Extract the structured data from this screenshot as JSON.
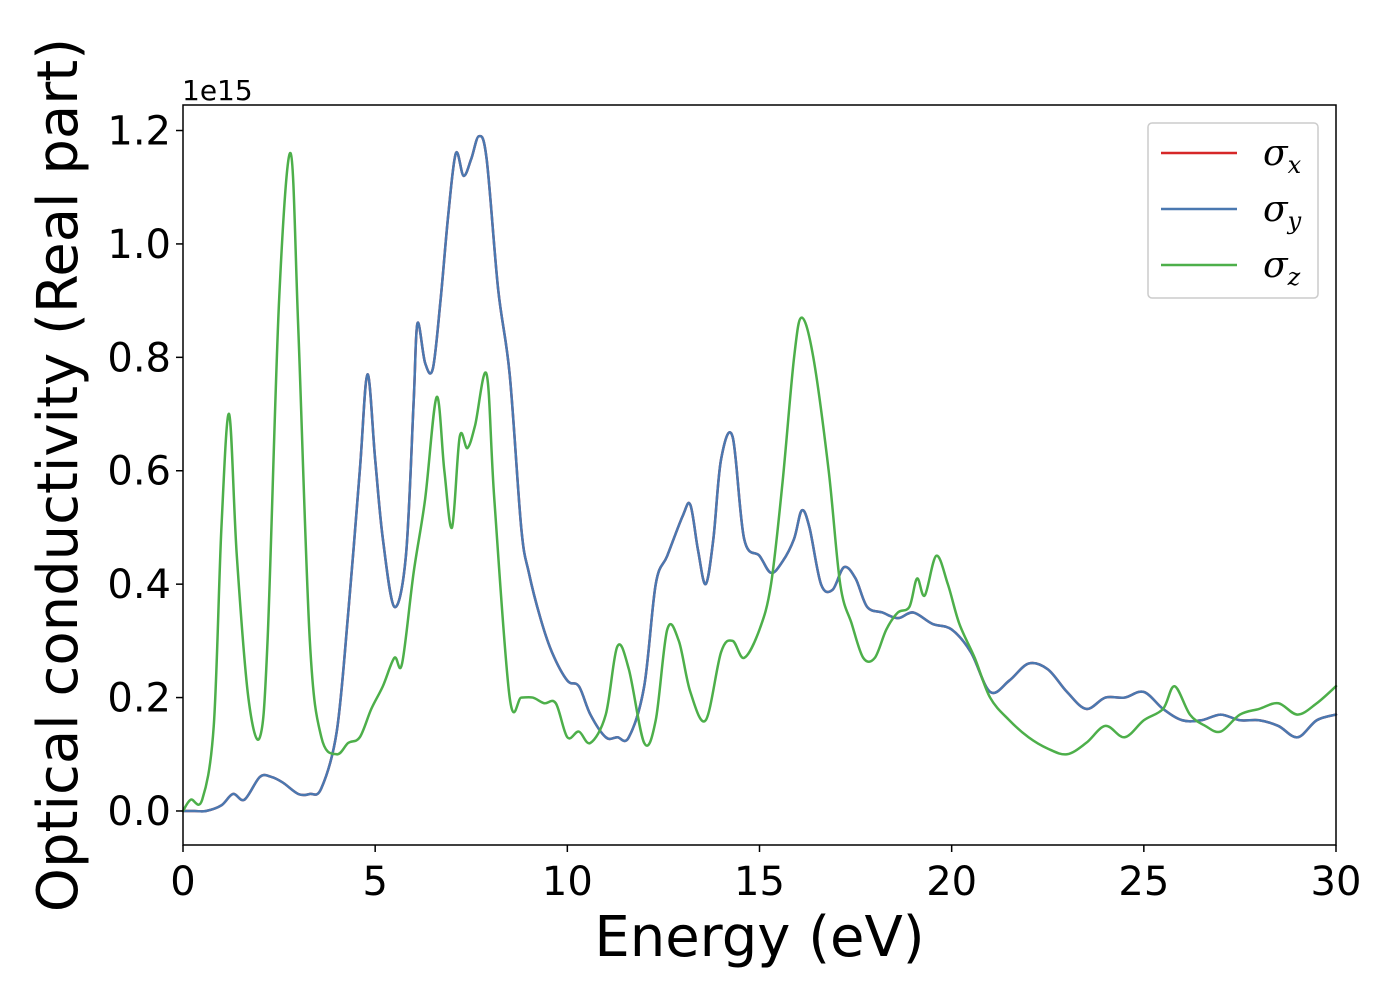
{
  "chart_data": {
    "type": "line",
    "title": "",
    "xlabel": "Energy (eV)",
    "ylabel": "Optical conductivity (Real part)",
    "y_offset_label": "1e15",
    "xlim": [
      0,
      30
    ],
    "ylim": [
      -0.06,
      1.245
    ],
    "xticks": [
      0,
      5,
      10,
      15,
      20,
      25,
      30
    ],
    "xtick_labels": [
      "0",
      "5",
      "10",
      "15",
      "20",
      "25",
      "30"
    ],
    "yticks": [
      0.0,
      0.2,
      0.4,
      0.6,
      0.8,
      1.0,
      1.2
    ],
    "ytick_labels": [
      "0.0",
      "0.2",
      "0.4",
      "0.6",
      "0.8",
      "1.0",
      "1.2"
    ],
    "grid": false,
    "legend_position": "top-right",
    "series": [
      {
        "name": "σx",
        "symbol": "σ",
        "sub": "x",
        "color": "#d62728",
        "x": [
          0,
          0.3,
          0.6,
          1.0,
          1.3,
          1.6,
          2.0,
          2.3,
          2.6,
          3.0,
          3.3,
          3.6,
          4.0,
          4.3,
          4.6,
          4.8,
          5.0,
          5.2,
          5.5,
          5.8,
          6.0,
          6.1,
          6.3,
          6.5,
          6.7,
          6.9,
          7.1,
          7.3,
          7.5,
          7.7,
          7.9,
          8.2,
          8.5,
          8.8,
          9.0,
          9.3,
          9.6,
          10.0,
          10.3,
          10.6,
          11.0,
          11.3,
          11.6,
          12.0,
          12.3,
          12.6,
          13.0,
          13.2,
          13.4,
          13.6,
          13.8,
          14.0,
          14.3,
          14.6,
          15.0,
          15.3,
          15.6,
          15.9,
          16.1,
          16.3,
          16.6,
          16.9,
          17.2,
          17.5,
          17.8,
          18.2,
          18.6,
          19.0,
          19.5,
          20.0,
          20.5,
          21.0,
          21.5,
          22.0,
          22.5,
          23.0,
          23.5,
          24.0,
          24.5,
          25.0,
          25.5,
          26.0,
          26.5,
          27.0,
          27.5,
          28.0,
          28.5,
          29.0,
          29.5,
          30.0
        ],
        "y": [
          0.0,
          0.0,
          0.0,
          0.01,
          0.03,
          0.02,
          0.06,
          0.06,
          0.05,
          0.03,
          0.03,
          0.04,
          0.14,
          0.35,
          0.6,
          0.77,
          0.62,
          0.48,
          0.36,
          0.45,
          0.72,
          0.86,
          0.79,
          0.78,
          0.9,
          1.05,
          1.16,
          1.12,
          1.15,
          1.19,
          1.15,
          0.92,
          0.77,
          0.5,
          0.42,
          0.34,
          0.28,
          0.23,
          0.22,
          0.17,
          0.13,
          0.13,
          0.13,
          0.22,
          0.4,
          0.45,
          0.52,
          0.54,
          0.46,
          0.4,
          0.48,
          0.62,
          0.66,
          0.48,
          0.45,
          0.42,
          0.44,
          0.48,
          0.53,
          0.5,
          0.4,
          0.39,
          0.43,
          0.41,
          0.36,
          0.35,
          0.34,
          0.35,
          0.33,
          0.32,
          0.28,
          0.21,
          0.23,
          0.26,
          0.25,
          0.21,
          0.18,
          0.2,
          0.2,
          0.21,
          0.18,
          0.16,
          0.16,
          0.17,
          0.16,
          0.16,
          0.15,
          0.13,
          0.16,
          0.17
        ]
      },
      {
        "name": "σy",
        "symbol": "σ",
        "sub": "y",
        "color": "#4a78b0",
        "x": [
          0,
          0.3,
          0.6,
          1.0,
          1.3,
          1.6,
          2.0,
          2.3,
          2.6,
          3.0,
          3.3,
          3.6,
          4.0,
          4.3,
          4.6,
          4.8,
          5.0,
          5.2,
          5.5,
          5.8,
          6.0,
          6.1,
          6.3,
          6.5,
          6.7,
          6.9,
          7.1,
          7.3,
          7.5,
          7.7,
          7.9,
          8.2,
          8.5,
          8.8,
          9.0,
          9.3,
          9.6,
          10.0,
          10.3,
          10.6,
          11.0,
          11.3,
          11.6,
          12.0,
          12.3,
          12.6,
          13.0,
          13.2,
          13.4,
          13.6,
          13.8,
          14.0,
          14.3,
          14.6,
          15.0,
          15.3,
          15.6,
          15.9,
          16.1,
          16.3,
          16.6,
          16.9,
          17.2,
          17.5,
          17.8,
          18.2,
          18.6,
          19.0,
          19.5,
          20.0,
          20.5,
          21.0,
          21.5,
          22.0,
          22.5,
          23.0,
          23.5,
          24.0,
          24.5,
          25.0,
          25.5,
          26.0,
          26.5,
          27.0,
          27.5,
          28.0,
          28.5,
          29.0,
          29.5,
          30.0
        ],
        "y": [
          0.0,
          0.0,
          0.0,
          0.01,
          0.03,
          0.02,
          0.06,
          0.06,
          0.05,
          0.03,
          0.03,
          0.04,
          0.14,
          0.35,
          0.6,
          0.77,
          0.62,
          0.48,
          0.36,
          0.45,
          0.72,
          0.86,
          0.79,
          0.78,
          0.9,
          1.05,
          1.16,
          1.12,
          1.15,
          1.19,
          1.15,
          0.92,
          0.77,
          0.5,
          0.42,
          0.34,
          0.28,
          0.23,
          0.22,
          0.17,
          0.13,
          0.13,
          0.13,
          0.22,
          0.4,
          0.45,
          0.52,
          0.54,
          0.46,
          0.4,
          0.48,
          0.62,
          0.66,
          0.48,
          0.45,
          0.42,
          0.44,
          0.48,
          0.53,
          0.5,
          0.4,
          0.39,
          0.43,
          0.41,
          0.36,
          0.35,
          0.34,
          0.35,
          0.33,
          0.32,
          0.28,
          0.21,
          0.23,
          0.26,
          0.25,
          0.21,
          0.18,
          0.2,
          0.2,
          0.21,
          0.18,
          0.16,
          0.16,
          0.17,
          0.16,
          0.16,
          0.15,
          0.13,
          0.16,
          0.17
        ]
      },
      {
        "name": "σz",
        "symbol": "σ",
        "sub": "z",
        "color": "#4daf4a",
        "x": [
          0,
          0.2,
          0.5,
          0.8,
          1.0,
          1.2,
          1.4,
          1.7,
          2.0,
          2.2,
          2.5,
          2.8,
          3.0,
          3.3,
          3.6,
          4.0,
          4.3,
          4.6,
          4.9,
          5.2,
          5.5,
          5.7,
          6.0,
          6.3,
          6.6,
          6.8,
          7.0,
          7.2,
          7.4,
          7.6,
          7.9,
          8.1,
          8.5,
          8.8,
          9.1,
          9.4,
          9.7,
          10.0,
          10.3,
          10.6,
          11.0,
          11.3,
          11.6,
          12.0,
          12.3,
          12.6,
          12.9,
          13.2,
          13.6,
          14.0,
          14.3,
          14.6,
          15.0,
          15.3,
          15.6,
          15.9,
          16.1,
          16.4,
          16.8,
          17.1,
          17.4,
          17.7,
          18.0,
          18.3,
          18.6,
          18.9,
          19.1,
          19.3,
          19.6,
          19.9,
          20.2,
          20.6,
          21.0,
          21.5,
          22.0,
          22.5,
          23.0,
          23.5,
          24.0,
          24.5,
          25.0,
          25.5,
          25.8,
          26.2,
          26.6,
          27.0,
          27.5,
          28.0,
          28.5,
          29.0,
          29.5,
          30.0
        ],
        "y": [
          0.0,
          0.02,
          0.02,
          0.15,
          0.5,
          0.7,
          0.45,
          0.2,
          0.13,
          0.3,
          0.9,
          1.16,
          0.85,
          0.3,
          0.13,
          0.1,
          0.12,
          0.13,
          0.18,
          0.22,
          0.27,
          0.26,
          0.42,
          0.55,
          0.73,
          0.6,
          0.5,
          0.66,
          0.64,
          0.68,
          0.77,
          0.55,
          0.2,
          0.2,
          0.2,
          0.19,
          0.19,
          0.13,
          0.14,
          0.12,
          0.17,
          0.29,
          0.25,
          0.12,
          0.16,
          0.32,
          0.3,
          0.21,
          0.16,
          0.28,
          0.3,
          0.27,
          0.32,
          0.4,
          0.58,
          0.8,
          0.87,
          0.8,
          0.6,
          0.4,
          0.33,
          0.27,
          0.27,
          0.32,
          0.35,
          0.36,
          0.41,
          0.38,
          0.45,
          0.4,
          0.33,
          0.27,
          0.2,
          0.16,
          0.13,
          0.11,
          0.1,
          0.12,
          0.15,
          0.13,
          0.16,
          0.18,
          0.22,
          0.17,
          0.15,
          0.14,
          0.17,
          0.18,
          0.19,
          0.17,
          0.19,
          0.22
        ]
      }
    ]
  }
}
